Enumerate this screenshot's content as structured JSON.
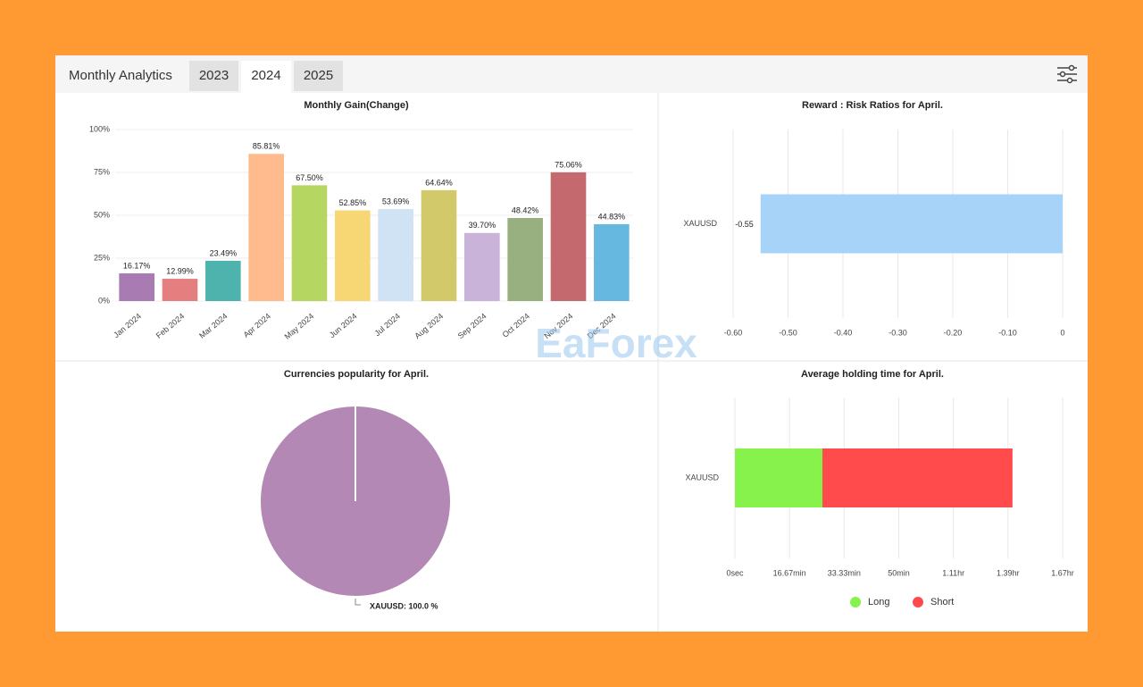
{
  "header": {
    "title": "Monthly Analytics",
    "tabs": [
      "2023",
      "2024",
      "2025"
    ]
  },
  "watermark": "EaForex",
  "chart_data": [
    {
      "type": "bar",
      "title": "Monthly Gain(Change)",
      "categories": [
        "Jan 2024",
        "Feb 2024",
        "Mar 2024",
        "Apr 2024",
        "May 2024",
        "Jun 2024",
        "Jul 2024",
        "Aug 2024",
        "Sep 2024",
        "Oct 2024",
        "Nov 2024",
        "Dec 2024"
      ],
      "values": [
        16.17,
        12.99,
        23.49,
        85.81,
        67.5,
        52.85,
        53.69,
        64.64,
        39.7,
        48.42,
        75.06,
        44.83
      ],
      "value_labels": [
        "16.17%",
        "12.99%",
        "23.49%",
        "85.81%",
        "67.50%",
        "52.85%",
        "53.69%",
        "64.64%",
        "39.70%",
        "48.42%",
        "75.06%",
        "44.83%"
      ],
      "colors": [
        "#a87bb3",
        "#e57f7f",
        "#4fb3ad",
        "#ffbb8e",
        "#b5d660",
        "#f7d774",
        "#cfe3f5",
        "#d1c96a",
        "#c9b3d9",
        "#98b07f",
        "#c46a6e",
        "#67b8e0"
      ],
      "ylim": [
        0,
        100
      ],
      "yticks": [
        {
          "value": 0,
          "label": "0%"
        },
        {
          "value": 25,
          "label": "25%"
        },
        {
          "value": 50,
          "label": "50%"
        },
        {
          "value": 75,
          "label": "75%"
        },
        {
          "value": 100,
          "label": "100%"
        }
      ],
      "grid": true
    },
    {
      "type": "barh",
      "title": "Reward : Risk Ratios for April.",
      "categories": [
        "XAUUSD"
      ],
      "values": [
        -0.55
      ],
      "color": "#a6d3f7",
      "xlim": [
        -0.6,
        0
      ],
      "xticks": [
        {
          "value": -0.6,
          "label": "-0.60"
        },
        {
          "value": -0.5,
          "label": "-0.50"
        },
        {
          "value": -0.4,
          "label": "-0.40"
        },
        {
          "value": -0.3,
          "label": "-0.30"
        },
        {
          "value": -0.2,
          "label": "-0.20"
        },
        {
          "value": -0.1,
          "label": "-0.10"
        },
        0
      ],
      "grid": true
    },
    {
      "type": "pie",
      "title": "Currencies popularity for April.",
      "categories": [
        "XAUUSD"
      ],
      "values": [
        100
      ],
      "value_labels": [
        "XAUUSD: 100.0 %"
      ],
      "colors": [
        "#b388b5"
      ]
    },
    {
      "type": "barh",
      "title": "Average holding time for April.",
      "stacked": true,
      "categories": [
        "XAUUSD"
      ],
      "series": [
        {
          "name": "Long",
          "color": "#86f24b",
          "values": [
            26.7
          ]
        },
        {
          "name": "Short",
          "color": "#ff4b4b",
          "values": [
            58
          ]
        }
      ],
      "xlim": [
        0,
        100
      ],
      "xticks": [
        {
          "value": 0,
          "label": "0sec"
        },
        {
          "value": 16.67,
          "label": "16.67min"
        },
        {
          "value": 33.33,
          "label": "33.33min"
        },
        {
          "value": 50,
          "label": "50min"
        },
        {
          "value": 66.67,
          "label": "1.11hr"
        },
        {
          "value": 83.33,
          "label": "1.39hr"
        },
        {
          "value": 100,
          "label": "1.67hr"
        }
      ],
      "grid": true,
      "legend": "bottom"
    }
  ]
}
